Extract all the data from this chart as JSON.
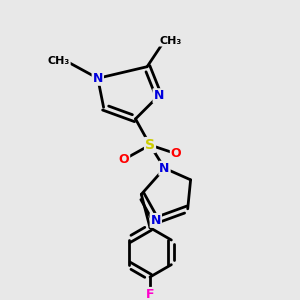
{
  "background_color": "#e8e8e8",
  "atom_colors": {
    "N": "#0000dd",
    "S": "#cccc00",
    "O": "#ff0000",
    "F": "#ff00cc",
    "C": "#000000"
  },
  "bond_color": "#000000",
  "bond_width": 2.0,
  "figsize": [
    3.0,
    3.0
  ],
  "dpi": 100,
  "xlim": [
    0,
    10
  ],
  "ylim": [
    0,
    10
  ]
}
